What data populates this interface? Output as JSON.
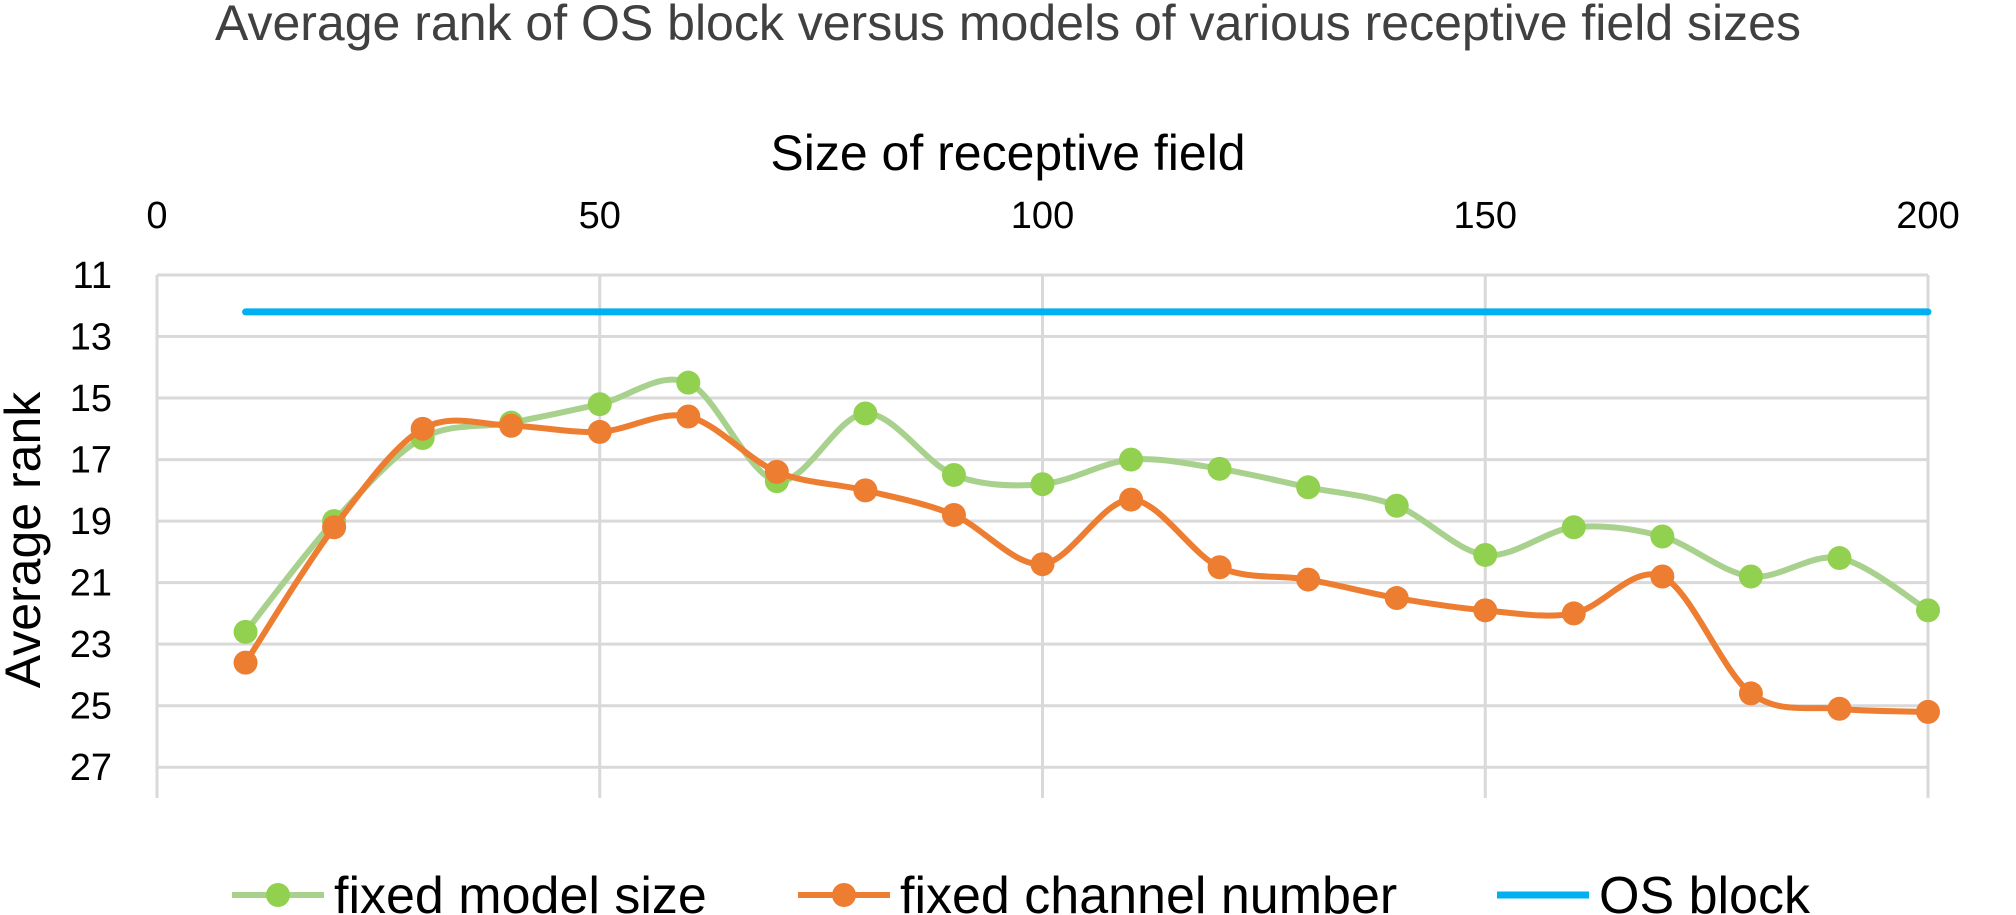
{
  "chart_data": {
    "type": "line",
    "title": "Average rank of OS block versus models of various receptive field sizes",
    "xlabel": "Size of receptive field",
    "ylabel": "Average rank",
    "x_axis_position": "top",
    "y_axis_reversed": true,
    "xlim": [
      0,
      200
    ],
    "ylim": [
      11,
      28
    ],
    "x_ticks": [
      0,
      50,
      100,
      150,
      200
    ],
    "y_ticks": [
      11,
      13,
      15,
      17,
      19,
      21,
      23,
      25,
      27
    ],
    "grid": true,
    "smoothed": true,
    "legend_position": "bottom",
    "series": [
      {
        "name": "fixed model size",
        "color": "#92d050",
        "line_color": "#a9d18e",
        "markers": true,
        "x": [
          10,
          20,
          30,
          40,
          50,
          60,
          70,
          80,
          90,
          100,
          110,
          120,
          130,
          140,
          150,
          160,
          170,
          180,
          190,
          200
        ],
        "y": [
          22.6,
          19.0,
          16.3,
          15.8,
          15.2,
          14.5,
          17.7,
          15.5,
          17.5,
          17.8,
          17.0,
          17.3,
          17.9,
          18.5,
          20.1,
          19.2,
          19.5,
          20.8,
          20.2,
          21.9
        ]
      },
      {
        "name": "fixed channel number",
        "color": "#ed7d31",
        "line_color": "#ed7d31",
        "markers": true,
        "x": [
          10,
          20,
          30,
          40,
          50,
          60,
          70,
          80,
          90,
          100,
          110,
          120,
          130,
          140,
          150,
          160,
          170,
          180,
          190,
          200
        ],
        "y": [
          23.6,
          19.2,
          16.0,
          15.9,
          16.1,
          15.6,
          17.4,
          18.0,
          18.8,
          20.4,
          18.3,
          20.5,
          20.9,
          21.5,
          21.9,
          22.0,
          20.8,
          24.6,
          25.1,
          25.2
        ]
      },
      {
        "name": "OS block",
        "color": "#00b0f0",
        "line_color": "#00b0f0",
        "markers": false,
        "x": [
          10,
          200
        ],
        "y": [
          12.2,
          12.2
        ]
      }
    ]
  }
}
